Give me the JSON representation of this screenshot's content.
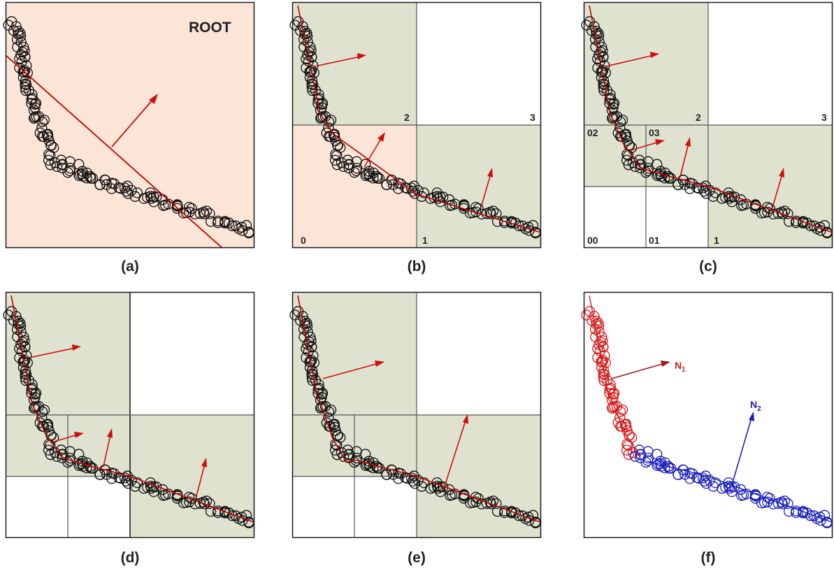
{
  "colors": {
    "occupied": "#dee2cf",
    "root_fill": "#fbe5d6",
    "empty": "#ffffff",
    "border": "#1a1a1a",
    "grid": "#555555",
    "points": "#111111",
    "fit_line": "#c00000",
    "arrow": "#cc1010",
    "cluster1": "#d81b1b",
    "cluster2": "#1a1fb8"
  },
  "panels": [
    {
      "id": "a",
      "caption": "(a)",
      "root_label": "ROOT",
      "quad_labels": []
    },
    {
      "id": "b",
      "caption": "(b)",
      "root_label": "",
      "quad_labels": [
        "0",
        "1",
        "2",
        "3"
      ]
    },
    {
      "id": "c",
      "caption": "(c)",
      "root_label": "",
      "quad_labels": [
        "00",
        "01",
        "02",
        "03",
        "1",
        "2",
        "3"
      ]
    },
    {
      "id": "d",
      "caption": "(d)",
      "root_label": "",
      "quad_labels": []
    },
    {
      "id": "e",
      "caption": "(e)",
      "root_label": "",
      "quad_labels": []
    },
    {
      "id": "f",
      "caption": "(f)",
      "root_label": "",
      "quad_labels": [],
      "normals": [
        {
          "label": "N",
          "sub": "1"
        },
        {
          "label": "N",
          "sub": "2"
        }
      ]
    }
  ]
}
